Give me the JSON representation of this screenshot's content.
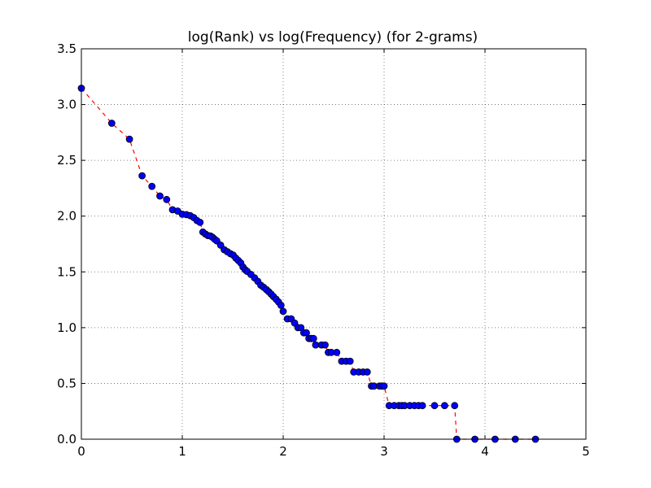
{
  "chart_data": {
    "type": "scatter",
    "title": "log(Rank) vs log(Frequency) (for 2-grams)",
    "xlabel": "",
    "ylabel": "",
    "xlim": [
      0,
      5
    ],
    "ylim": [
      0,
      3.5
    ],
    "x_ticks": [
      "0",
      "1",
      "2",
      "3",
      "4",
      "5"
    ],
    "y_ticks": [
      "0.0",
      "0.5",
      "1.0",
      "1.5",
      "2.0",
      "2.5",
      "3.0",
      "3.5"
    ],
    "grid": true,
    "marker_color": "#0000ff",
    "line_color": "#ff0000",
    "line_style": "dashed",
    "x": [
      0,
      0.301,
      0.477,
      0.602,
      0.699,
      0.778,
      0.845,
      0.903,
      0.954,
      1.0,
      1.041,
      1.079,
      1.114,
      1.146,
      1.176,
      1.204,
      1.23,
      1.255,
      1.279,
      1.301,
      1.322,
      1.342,
      1.38,
      1.415,
      1.447,
      1.477,
      1.505,
      1.531,
      1.556,
      1.58,
      1.602,
      1.623,
      1.643,
      1.68,
      1.716,
      1.748,
      1.778,
      1.806,
      1.833,
      1.857,
      1.881,
      1.903,
      1.93,
      1.954,
      1.978,
      2.0,
      2.041,
      2.079,
      2.114,
      2.146,
      2.176,
      2.204,
      2.23,
      2.255,
      2.279,
      2.301,
      2.322,
      2.38,
      2.415,
      2.447,
      2.477,
      2.531,
      2.58,
      2.623,
      2.663,
      2.699,
      2.748,
      2.792,
      2.833,
      2.875,
      2.9,
      2.954,
      2.978,
      3.0,
      3.05,
      3.1,
      3.146,
      3.176,
      3.204,
      3.255,
      3.301,
      3.342,
      3.38,
      3.5,
      3.6,
      3.699,
      3.72,
      3.9,
      4.1,
      4.3,
      4.5
    ],
    "values": [
      3.146,
      2.833,
      2.69,
      2.362,
      2.267,
      2.18,
      2.149,
      2.057,
      2.045,
      2.017,
      2.013,
      2.004,
      1.987,
      1.96,
      1.944,
      1.857,
      1.839,
      1.826,
      1.822,
      1.81,
      1.792,
      1.778,
      1.74,
      1.699,
      1.681,
      1.663,
      1.65,
      1.623,
      1.602,
      1.58,
      1.544,
      1.519,
      1.505,
      1.477,
      1.447,
      1.415,
      1.38,
      1.362,
      1.342,
      1.322,
      1.301,
      1.279,
      1.255,
      1.23,
      1.2,
      1.146,
      1.079,
      1.079,
      1.041,
      1.0,
      1.0,
      0.954,
      0.954,
      0.903,
      0.903,
      0.903,
      0.845,
      0.845,
      0.845,
      0.778,
      0.778,
      0.778,
      0.699,
      0.699,
      0.699,
      0.602,
      0.602,
      0.602,
      0.602,
      0.477,
      0.477,
      0.477,
      0.477,
      0.477,
      0.301,
      0.301,
      0.301,
      0.301,
      0.301,
      0.301,
      0.301,
      0.301,
      0.301,
      0.301,
      0.301,
      0.301,
      0.0,
      0.0,
      0.0,
      0.0,
      0.0
    ]
  }
}
